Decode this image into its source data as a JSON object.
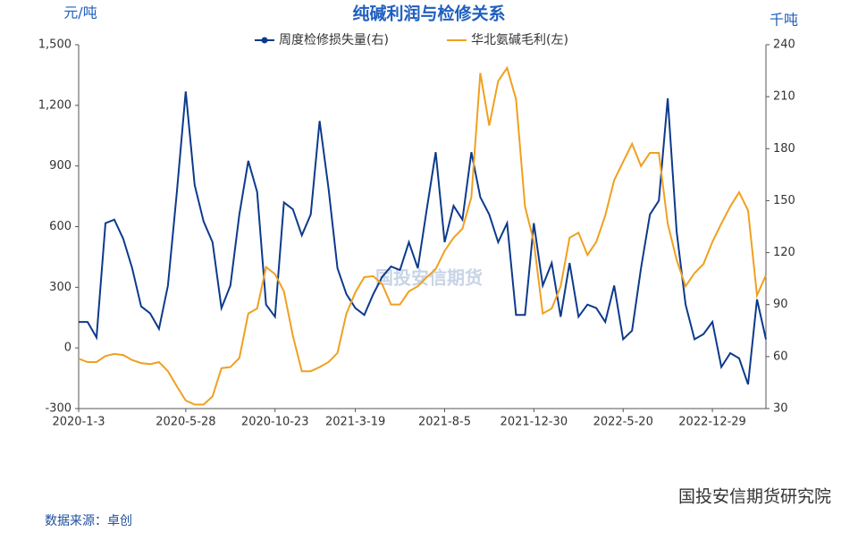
{
  "chart_data": {
    "type": "line",
    "title": "纯碱利润与检修关系",
    "y_label": "元/吨",
    "y2_label": "千吨",
    "source": "数据来源：卓创",
    "watermark": "国投安信期货",
    "footer_brand": "国投安信期货研究院",
    "categories": [
      "2020-1-3",
      null,
      null,
      null,
      null,
      null,
      null,
      null,
      null,
      null,
      null,
      null,
      "2020-5-28",
      null,
      null,
      null,
      null,
      null,
      null,
      null,
      null,
      null,
      "2020-10-23",
      null,
      null,
      null,
      null,
      null,
      null,
      null,
      null,
      "2021-3-19",
      null,
      null,
      null,
      null,
      null,
      null,
      null,
      null,
      null,
      "2021-8-5",
      null,
      null,
      null,
      null,
      null,
      null,
      null,
      null,
      null,
      "2021-12-30",
      null,
      null,
      null,
      null,
      null,
      null,
      null,
      null,
      null,
      "2022-5-20",
      null,
      null,
      null,
      null,
      null,
      null,
      null,
      null,
      null,
      "2022-12-29",
      null,
      null,
      null,
      null,
      null,
      null
    ],
    "ylim": [
      -300,
      1500
    ],
    "yticks": [
      {
        "value": -300,
        "label": "-300"
      },
      0,
      300,
      600,
      900,
      {
        "value": 1200,
        "label": "1,200"
      },
      {
        "value": 1500,
        "label": "1,500"
      }
    ],
    "y2lim": [
      30,
      240
    ],
    "y2ticks": [
      30,
      60,
      90,
      120,
      150,
      180,
      210,
      240
    ],
    "series": [
      {
        "name": "周度检修损失量(右)",
        "color": "#0d3a8c",
        "axis": "y2",
        "marker": true,
        "values": [
          80,
          80,
          71,
          137,
          139,
          128,
          111,
          89,
          85,
          76,
          101,
          155,
          213,
          159,
          138,
          126,
          88,
          101,
          142,
          173,
          155,
          90,
          83,
          149,
          145,
          130,
          142,
          196,
          157,
          111,
          96,
          88,
          84,
          96,
          106,
          112,
          110,
          126,
          111,
          145,
          178,
          126,
          147,
          139,
          178,
          152,
          142,
          126,
          137,
          84,
          84,
          137,
          101,
          114,
          83,
          114,
          83,
          90,
          88,
          80,
          101,
          70,
          75,
          111,
          142,
          150,
          209,
          132,
          90,
          70,
          73,
          80,
          54,
          62,
          59,
          44,
          93,
          70
        ]
      },
      {
        "name": "华北氨碱毛利(左)",
        "color": "#f0a020",
        "values": [
          -53,
          -70,
          -70,
          -40,
          -30,
          -35,
          -60,
          -75,
          -80,
          -70,
          -115,
          -190,
          -260,
          -280,
          -280,
          -240,
          -100,
          -95,
          -50,
          170,
          195,
          400,
          365,
          280,
          60,
          -115,
          -115,
          -95,
          -70,
          -25,
          170,
          275,
          350,
          355,
          315,
          215,
          215,
          280,
          305,
          350,
          390,
          480,
          545,
          590,
          745,
          1360,
          1100,
          1320,
          1385,
          1230,
          700,
          525,
          170,
          195,
          305,
          545,
          570,
          460,
          525,
          655,
          830,
          920,
          1010,
          900,
          965,
          965,
          615,
          435,
          305,
          370,
          415,
          525,
          615,
          700,
          770,
          680,
          260,
          360
        ]
      }
    ]
  }
}
